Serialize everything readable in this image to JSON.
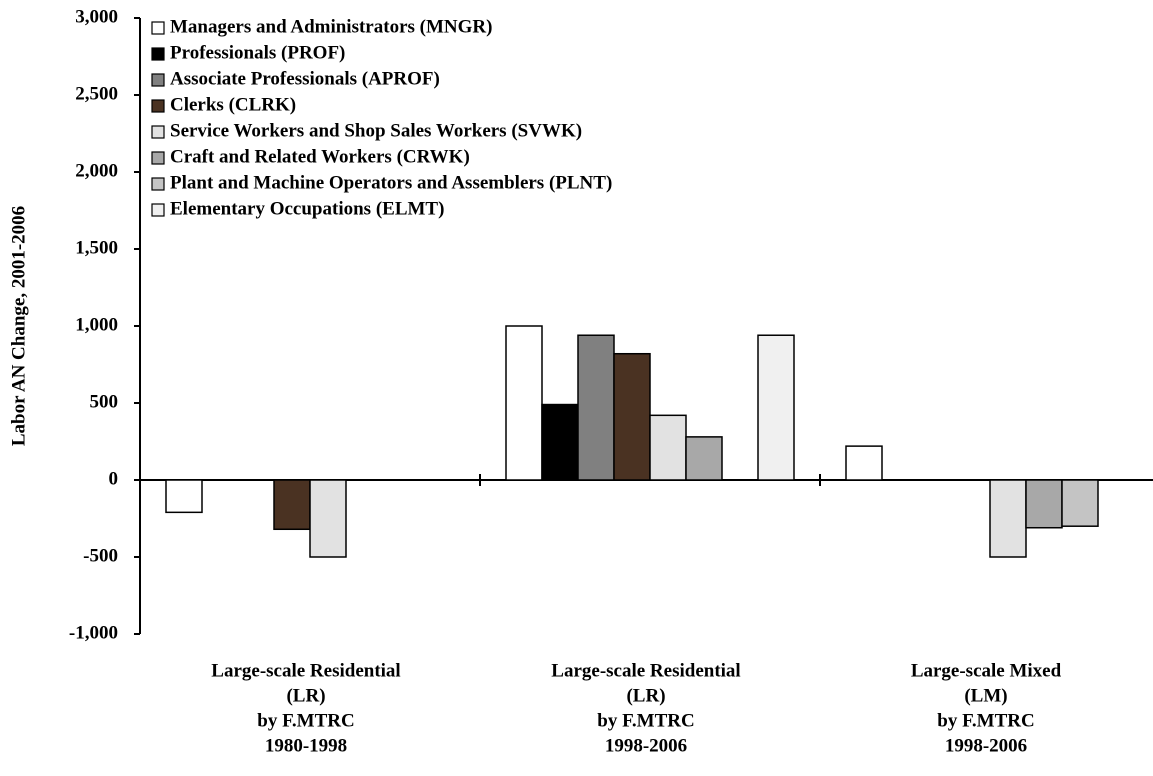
{
  "chart_data": {
    "type": "bar",
    "y_label": "Labor AN Change, 2001-2006",
    "categories": [
      [
        "Large-scale Residential",
        "(LR)",
        "by F.MTRC",
        "1980-1998"
      ],
      [
        "Large-scale Residential",
        "(LR)",
        "by F.MTRC",
        "1998-2006"
      ],
      [
        "Large-scale Mixed",
        "(LM)",
        "by F.MTRC",
        "1998-2006"
      ]
    ],
    "series": [
      {
        "name": "Managers and Administrators (MNGR)",
        "color": "#ffffff",
        "values": [
          -210,
          1000,
          220
        ]
      },
      {
        "name": "Professionals (PROF)",
        "color": "#000000",
        "values": [
          0,
          490,
          0
        ]
      },
      {
        "name": "Associate Professionals (APROF)",
        "color": "#808080",
        "values": [
          0,
          940,
          0
        ]
      },
      {
        "name": "Clerks (CLRK)",
        "color": "#4a3222",
        "values": [
          -320,
          820,
          0
        ]
      },
      {
        "name": "Service Workers and Shop Sales Workers (SVWK)",
        "color": "#e2e2e2",
        "values": [
          -500,
          420,
          -500
        ]
      },
      {
        "name": "Craft and Related Workers (CRWK)",
        "color": "#a8a8a8",
        "values": [
          0,
          280,
          -310
        ]
      },
      {
        "name": "Plant and Machine Operators and Assemblers (PLNT)",
        "color": "#c4c4c4",
        "values": [
          0,
          0,
          -300
        ]
      },
      {
        "name": "Elementary Occupations (ELMT)",
        "color": "#f0f0f0",
        "values": [
          0,
          940,
          0
        ]
      }
    ],
    "ylim": [
      -1000,
      3000
    ],
    "yticks": [
      {
        "value": -1000,
        "label": "-1,000"
      },
      -500,
      0,
      500,
      {
        "value": 1000,
        "label": "1,000"
      },
      {
        "value": 1500,
        "label": "1,500"
      },
      {
        "value": 2000,
        "label": "2,000"
      },
      {
        "value": 2500,
        "label": "2,500"
      },
      {
        "value": 3000,
        "label": "3,000"
      }
    ],
    "legend": "top-left"
  }
}
